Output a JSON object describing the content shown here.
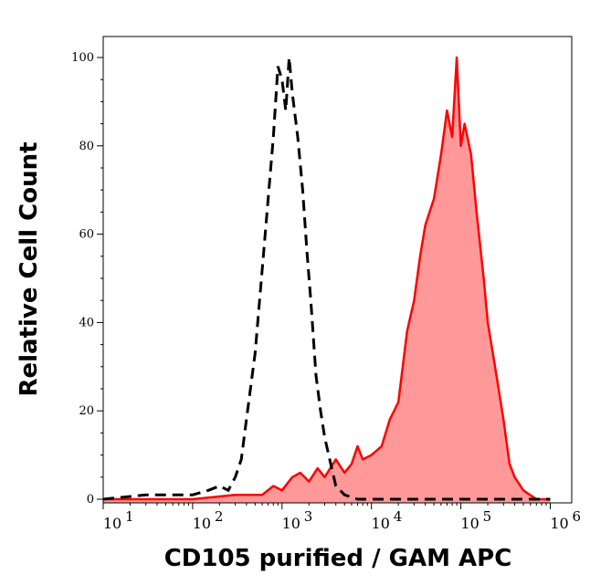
{
  "chart_data": {
    "type": "area",
    "xlabel": "CD105 purified / GAM APC",
    "ylabel": "Relative Cell Count",
    "x_scale": "log",
    "xlim": [
      10,
      1000000
    ],
    "ylim": [
      0,
      105
    ],
    "x_tick_exponents": [
      "1",
      "2",
      "3",
      "4",
      "5",
      "6"
    ],
    "y_ticks": [
      0,
      20,
      40,
      60,
      80,
      100
    ],
    "grid": false,
    "series": [
      {
        "style": "dashed-line",
        "color": "#000000",
        "x": [
          10,
          30,
          100,
          150,
          200,
          250,
          300,
          350,
          400,
          500,
          600,
          700,
          800,
          900,
          1000,
          1100,
          1200,
          1300,
          1500,
          1700,
          1900,
          2100,
          2400,
          2700,
          3000,
          3500,
          4000,
          5000,
          7000,
          10000,
          1000000
        ],
        "y": [
          0,
          1,
          1,
          2,
          3,
          2,
          5,
          9,
          18,
          33,
          52,
          68,
          82,
          98,
          95,
          88,
          100,
          92,
          82,
          70,
          56,
          45,
          28,
          20,
          14,
          8,
          3,
          1,
          0,
          0,
          0
        ]
      },
      {
        "style": "filled-line",
        "color": "#ff0000",
        "fill": "#ff9999",
        "x": [
          10,
          100,
          300,
          600,
          800,
          1000,
          1300,
          1600,
          2000,
          2500,
          3000,
          4000,
          5000,
          6000,
          7000,
          8000,
          10000,
          13000,
          16000,
          20000,
          25000,
          30000,
          35000,
          40000,
          50000,
          60000,
          70000,
          80000,
          90000,
          100000,
          110000,
          130000,
          150000,
          180000,
          200000,
          250000,
          300000,
          350000,
          400000,
          500000,
          700000,
          1000000
        ],
        "y": [
          0,
          0,
          1,
          1,
          3,
          2,
          5,
          6,
          4,
          7,
          5,
          9,
          6,
          8,
          12,
          9,
          10,
          12,
          18,
          22,
          38,
          45,
          55,
          62,
          68,
          78,
          88,
          82,
          100,
          80,
          85,
          78,
          65,
          50,
          40,
          28,
          18,
          8,
          5,
          2,
          0,
          0
        ]
      }
    ]
  }
}
